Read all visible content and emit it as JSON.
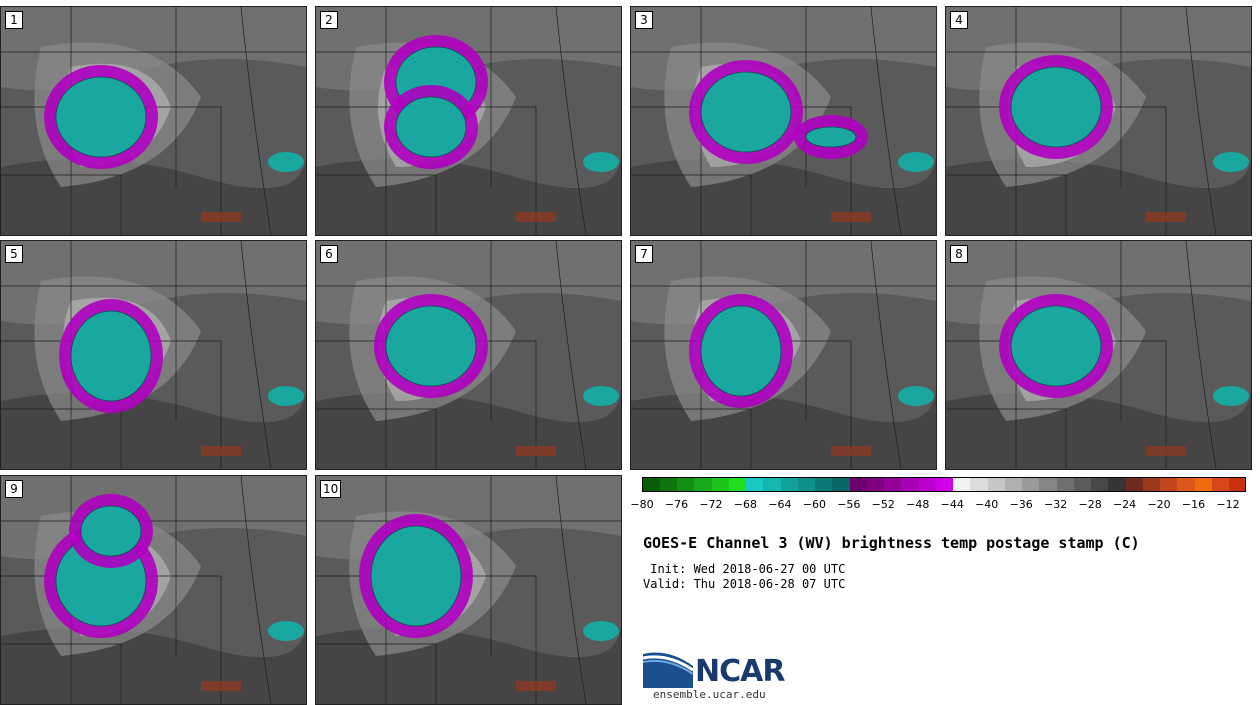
{
  "panels": [
    {
      "label": "1"
    },
    {
      "label": "2"
    },
    {
      "label": "3"
    },
    {
      "label": "4"
    },
    {
      "label": "5"
    },
    {
      "label": "6"
    },
    {
      "label": "7"
    },
    {
      "label": "8"
    },
    {
      "label": "9"
    },
    {
      "label": "10"
    }
  ],
  "colorbar": {
    "colors": [
      "#0a5c0a",
      "#0f760f",
      "#139013",
      "#18aa18",
      "#1cc41c",
      "#20dd20",
      "#19c9c3",
      "#15b5b0",
      "#12a29d",
      "#0f8e8a",
      "#0c7b77",
      "#0a6764",
      "#6c006c",
      "#800080",
      "#94009a",
      "#a800b4",
      "#bc00ce",
      "#d000e6",
      "#f2f2f2",
      "#dcdcdc",
      "#c6c6c6",
      "#b0b0b0",
      "#9a9a9a",
      "#858585",
      "#707070",
      "#5c5c5c",
      "#484848",
      "#353535",
      "#6e2c1e",
      "#9a3a1c",
      "#c2461a",
      "#e05818",
      "#f06a10",
      "#d8481a",
      "#c83010"
    ],
    "ticks": [
      "−80",
      "−76",
      "−72",
      "−68",
      "−64",
      "−60",
      "−56",
      "−52",
      "−48",
      "−44",
      "−40",
      "−36",
      "−32",
      "−28",
      "−24",
      "−20",
      "−16",
      "−12"
    ]
  },
  "title": "GOES-E Channel 3 (WV) brightness temp postage stamp (C)",
  "init_line": " Init: Wed 2018-06-27 00 UTC",
  "valid_line": "Valid: Thu 2018-06-28 07 UTC",
  "logo": {
    "name": "NCAR",
    "url": "ensemble.ucar.edu"
  }
}
